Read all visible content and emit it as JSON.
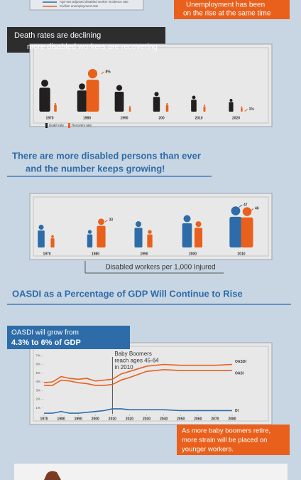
{
  "header": {
    "legend": [
      {
        "name": "Age-sex adjusted disabled worker incidence rate",
        "color": "#2b6aa0"
      },
      {
        "name": "Civilian unemployment rate",
        "color": "#e8601c"
      }
    ],
    "callout": [
      "Unemployment has been",
      "on the rise at the same time"
    ]
  },
  "chart_data": [
    {
      "type": "pictogram",
      "title": [
        "Death rates are declining",
        "more disabled workers are recovering"
      ],
      "categories": [
        "1970",
        "1980",
        "1990",
        "200",
        "2010",
        "2020"
      ],
      "series": [
        {
          "name": "Death rate",
          "color": "#231f20",
          "values": [
            6,
            5.3,
            5,
            3.7,
            3,
            2.4
          ]
        },
        {
          "name": "Recovery rate",
          "color": "#e8601c",
          "values": [
            1.6,
            8,
            1.1,
            1.6,
            1.3,
            1
          ],
          "value_labels": [
            null,
            "8%",
            null,
            null,
            null,
            "1%"
          ]
        }
      ]
    },
    {
      "type": "pictogram",
      "title": [
        "There are more disabled persons than ever",
        "and the number keeps growing!"
      ],
      "caption": "Disabled workers per 1,000 Injured",
      "categories": [
        "1970",
        "1980",
        "1990",
        "2000",
        "2010"
      ],
      "series": [
        {
          "color": "#2d6ca8",
          "values": [
            26,
            20,
            30,
            37,
            47
          ]
        },
        {
          "color": "#e8601c",
          "values": [
            14,
            33,
            20,
            30,
            46
          ]
        }
      ]
    },
    {
      "type": "line",
      "title": "OASDI as a Percentage of GDP Will Continue to Rise",
      "subtitle": [
        "OASDI will grow from",
        "4.3% to 6% of GDP"
      ],
      "x": [
        1970,
        1975,
        1980,
        1985,
        1990,
        1995,
        2000,
        2005,
        2010,
        2015,
        2020,
        2030,
        2040,
        2050,
        2060,
        2070,
        2080
      ],
      "series": [
        {
          "name": "OASDI",
          "color": "#e8601c",
          "values": [
            3.9,
            4.0,
            4.6,
            4.4,
            4.3,
            4.4,
            4.1,
            4.2,
            4.3,
            4.9,
            5.2,
            5.8,
            6.0,
            5.9,
            5.9,
            5.9,
            6.0
          ]
        },
        {
          "name": "OASI",
          "color": "#e8601c",
          "values": [
            3.6,
            3.6,
            4.2,
            4.1,
            3.9,
            3.8,
            3.6,
            3.6,
            3.7,
            4.2,
            4.5,
            5.2,
            5.4,
            5.3,
            5.3,
            5.3,
            5.3
          ]
        },
        {
          "name": "DI",
          "color": "#2d6ca8",
          "values": [
            0.4,
            0.4,
            0.6,
            0.4,
            0.4,
            0.5,
            0.6,
            0.7,
            0.9,
            0.9,
            0.8,
            0.8,
            0.8,
            0.7,
            0.7,
            0.7,
            0.7
          ]
        }
      ],
      "xlim": [
        1970,
        2080
      ],
      "xticks": [
        1970,
        1980,
        1990,
        2000,
        2010,
        2020,
        2030,
        2040,
        2050,
        2060,
        2070,
        2080
      ],
      "ylim": [
        0,
        8
      ],
      "yticks": [
        {
          "value": 1,
          "label": "1%"
        },
        {
          "value": 2,
          "label": "2%"
        },
        {
          "value": 3,
          "label": "3%"
        },
        {
          "value": 4,
          "label": "4%"
        },
        {
          "value": 5,
          "label": "5%"
        },
        {
          "value": 6,
          "label": "6%"
        },
        {
          "value": 7,
          "label": "7%"
        }
      ],
      "annotation": {
        "x": 2010,
        "text": [
          "Baby Boomers",
          "reach ages 45-64",
          "in 2010"
        ]
      },
      "note": [
        "As more baby boomers retire,",
        "more strain will be placed on",
        "younger workers."
      ]
    }
  ]
}
